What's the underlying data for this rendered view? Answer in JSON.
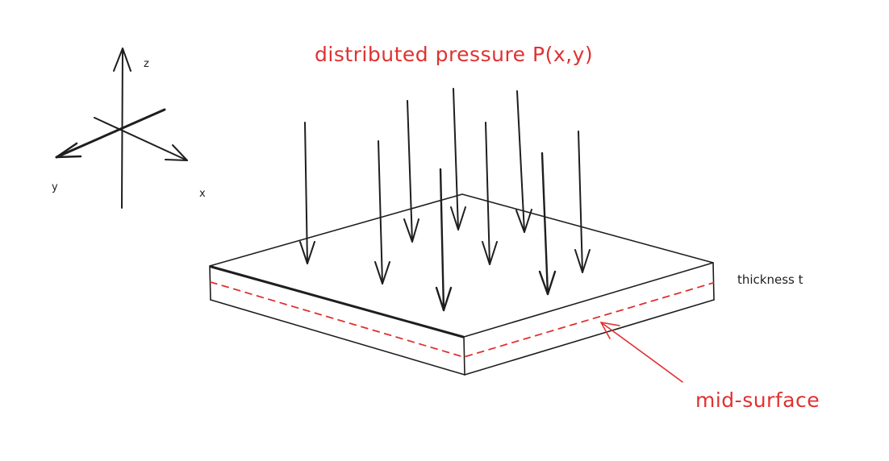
{
  "colors": {
    "ink": "#1e1e1e",
    "annotation": "#e03131"
  },
  "labels": {
    "pressure": "distributed pressure P(x,y)",
    "thickness": "thickness t",
    "mid_surface": "mid-surface"
  },
  "axes": {
    "z": "z",
    "y": "y",
    "x": "x"
  }
}
